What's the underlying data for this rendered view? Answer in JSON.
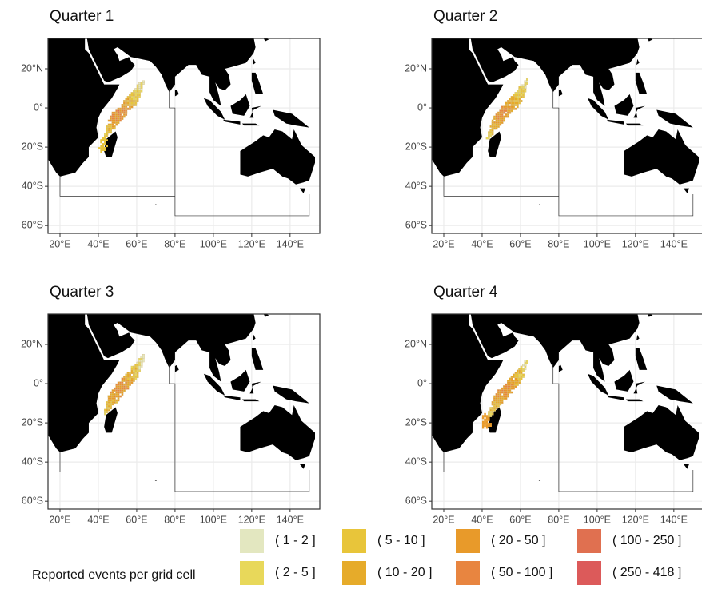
{
  "panels": [
    {
      "title": "Quarter  1"
    },
    {
      "title": "Quarter  2"
    },
    {
      "title": "Quarter  3"
    },
    {
      "title": "Quarter  4"
    }
  ],
  "xlim": [
    13.75,
    155.5
  ],
  "ylim": [
    -64,
    35.5
  ],
  "xticks": [
    {
      "value": 20,
      "label": "20°E"
    },
    {
      "value": 40,
      "label": "40°E"
    },
    {
      "value": 60,
      "label": "60°E"
    },
    {
      "value": 80,
      "label": "80°E"
    },
    {
      "value": 100,
      "label": "100°E"
    },
    {
      "value": 120,
      "label": "120°E"
    },
    {
      "value": 140,
      "label": "140°E"
    }
  ],
  "yticks": [
    {
      "value": 20,
      "label": "20°N"
    },
    {
      "value": 0,
      "label": "0°"
    },
    {
      "value": -20,
      "label": "20°S"
    },
    {
      "value": -40,
      "label": "40°S"
    },
    {
      "value": -60,
      "label": "60°S"
    }
  ],
  "grid": true,
  "legend": {
    "title": "Reported events per grid cell",
    "items": [
      {
        "label": "( 1 - 2 ]",
        "color": "#e3e7c0"
      },
      {
        "label": "( 2 - 5 ]",
        "color": "#e8d85a"
      },
      {
        "label": "( 5 - 10 ]",
        "color": "#e8c53a"
      },
      {
        "label": "( 10 - 20 ]",
        "color": "#e6ab2a"
      },
      {
        "label": "( 20 - 50 ]",
        "color": "#e89a2a"
      },
      {
        "label": "( 50 - 100 ]",
        "color": "#e88540"
      },
      {
        "label": "( 100 - 250 ]",
        "color": "#e07050"
      },
      {
        "label": "( 250 - 418 ]",
        "color": "#dc5a5a"
      }
    ]
  }
}
